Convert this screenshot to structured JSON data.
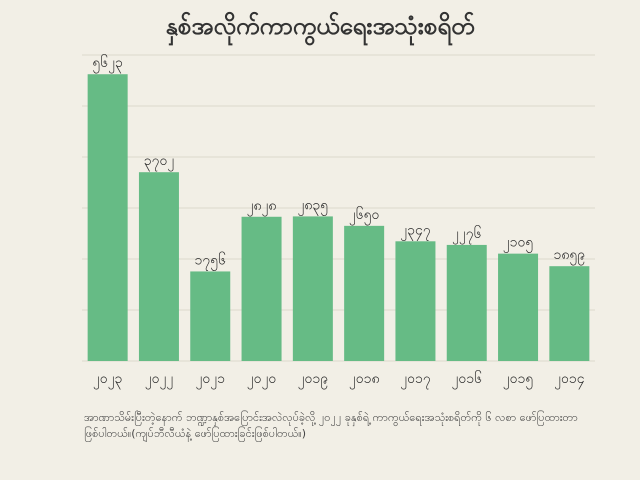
{
  "title": "နှစ်အလိုက်ကာကွယ်ရေးအသုံးစရိတ်",
  "footnote": "အာဏာသိမ်းပြီးတဲ့နောက် ဘဏ္ဍာနှစ်အပြောင်းအလဲလုပ်ခဲ့လို့ ၂၀၂၂ ခုနှစ်ရဲ့ ကာကွယ်ရေးအသုံးစရိတ်ကို ၆ လစာ ဖော်ပြထားတာဖြစ်ပါတယ်။(ကျပ်ဘီလီယံနဲ့ ဖော်ပြထားခြင်းဖြစ်ပါတယ်။)",
  "colors": {
    "bar": "#66bb85",
    "grid": "#dcd8cc",
    "background": "#f2efe6",
    "text": "#2b2b2b"
  },
  "chart_data": {
    "type": "bar",
    "title": "နှစ်အလိုက်ကာကွယ်ရေးအသုံးစရိတ်",
    "xlabel": "",
    "ylabel": "",
    "categories": [
      "၂၀၂၃",
      "၂၀၂၂",
      "၂၀၂၁",
      "၂၀၂၀",
      "၂၀၁၉",
      "၂၀၁၈",
      "၂၀၁၇",
      "၂၀၁၆",
      "၂၀၁၅",
      "၂၀၁၄"
    ],
    "values": [
      5623,
      3702,
      1756,
      2828,
      2835,
      2650,
      2347,
      2276,
      2105,
      1859
    ],
    "value_labels": [
      "၅၆၂၃",
      "၃၇၀၂",
      "၁၇၅၆",
      "၂၈၂၈",
      "၂၈၃၅",
      "၂၆၅၀",
      "၂၃၄၇",
      "၂၂၇၆",
      "၂၁၀၅",
      "၁၈၅၉"
    ],
    "ylim": [
      0,
      6000
    ],
    "grid": true,
    "legend": "none"
  }
}
